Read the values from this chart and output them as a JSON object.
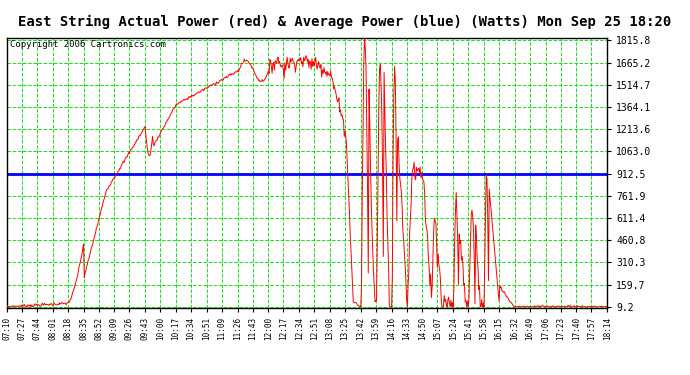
{
  "title": "East String Actual Power (red) & Average Power (blue) (Watts) Mon Sep 25 18:20",
  "copyright": "Copyright 2006 Cartronics.com",
  "yticks": [
    9.2,
    159.7,
    310.3,
    460.8,
    611.4,
    761.9,
    912.5,
    1063.0,
    1213.6,
    1364.1,
    1514.7,
    1665.2,
    1815.8
  ],
  "ymin": 9.2,
  "ymax": 1815.8,
  "avg_power": 912.5,
  "bg_color": "#ffffff",
  "plot_bg_color": "#ffffff",
  "grid_color": "#00dd00",
  "red_color": "#ff0000",
  "blue_color": "#0000ff",
  "title_fontsize": 10,
  "copyright_fontsize": 6.5,
  "x_labels": [
    "07:10",
    "07:27",
    "07:44",
    "08:01",
    "08:18",
    "08:35",
    "08:52",
    "09:09",
    "09:26",
    "09:43",
    "10:00",
    "10:17",
    "10:34",
    "10:51",
    "11:09",
    "11:26",
    "11:43",
    "12:00",
    "12:17",
    "12:34",
    "12:51",
    "13:08",
    "13:25",
    "13:42",
    "13:59",
    "14:16",
    "14:33",
    "14:50",
    "15:07",
    "15:24",
    "15:41",
    "15:58",
    "16:15",
    "16:32",
    "16:49",
    "17:06",
    "17:23",
    "17:40",
    "17:57",
    "18:14"
  ]
}
